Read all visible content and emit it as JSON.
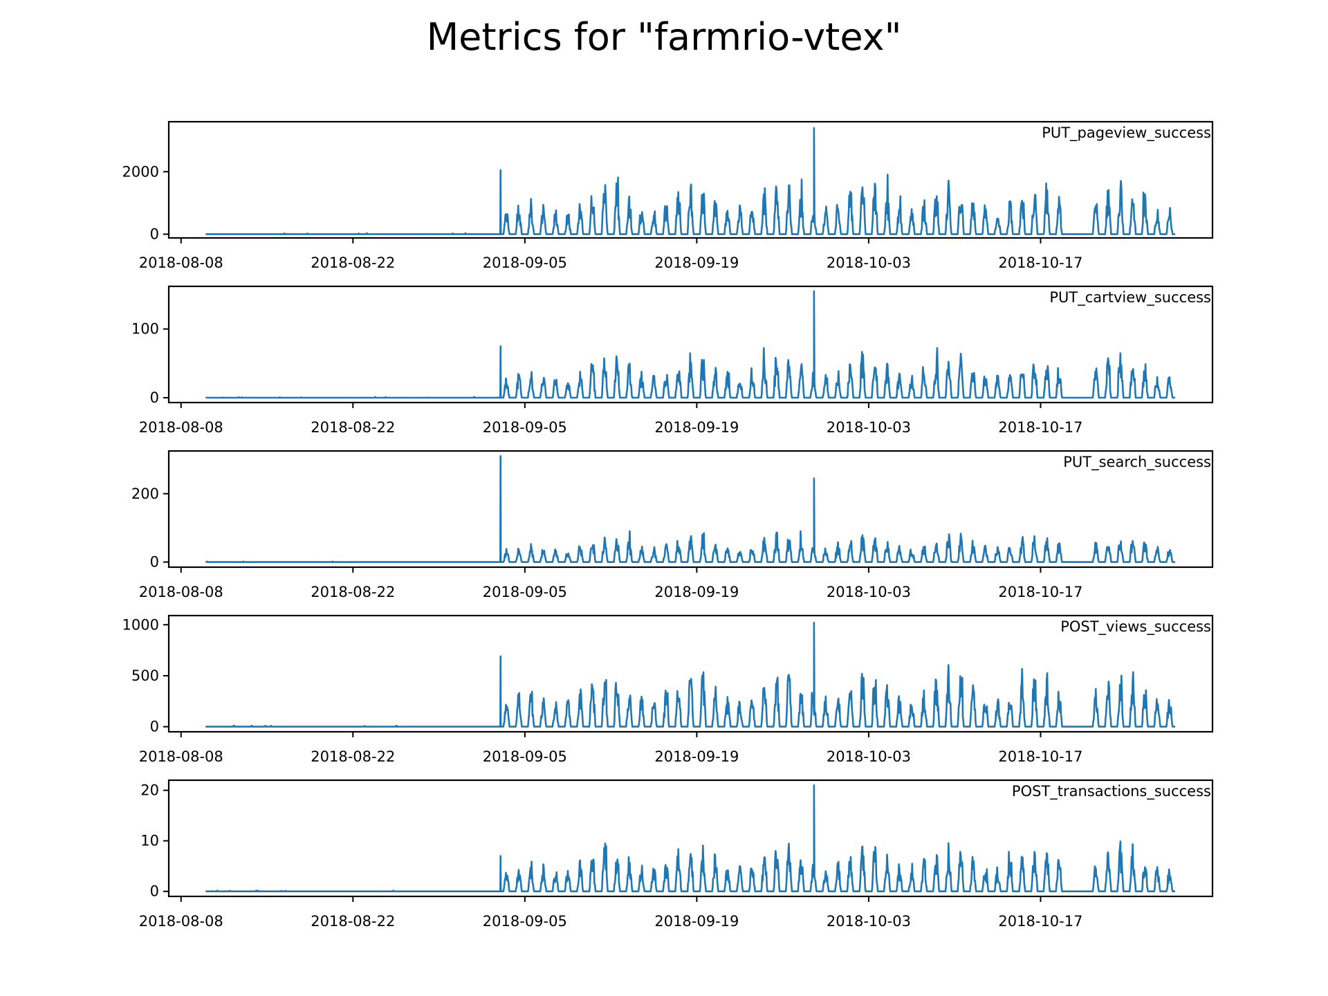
{
  "title": "Metrics for \"farmrio-vtex\"",
  "colors": {
    "line": "#1f77b4",
    "axes": "#000000",
    "background": "#ffffff"
  },
  "chart_data": [
    {
      "type": "line",
      "series": [
        {
          "name": "PUT_pageview_success",
          "peak": 3400,
          "level": 900,
          "spike": 2050,
          "seed": 11
        }
      ],
      "x_ticks": [
        "2018-08-08",
        "2018-08-22",
        "2018-09-05",
        "2018-09-19",
        "2018-10-03",
        "2018-10-17"
      ],
      "x_range": [
        "2018-08-07",
        "2018-10-31"
      ],
      "x_data_range": [
        "2018-08-10",
        "2018-10-28"
      ],
      "y_ticks": [
        0,
        2000
      ],
      "ylim": [
        -120,
        3600
      ],
      "grid": false
    },
    {
      "type": "line",
      "series": [
        {
          "name": "PUT_cartview_success",
          "peak": 155,
          "level": 35,
          "spike": 75,
          "seed": 23
        }
      ],
      "x_ticks": [
        "2018-08-08",
        "2018-08-22",
        "2018-09-05",
        "2018-09-19",
        "2018-10-03",
        "2018-10-17"
      ],
      "x_range": [
        "2018-08-07",
        "2018-10-31"
      ],
      "x_data_range": [
        "2018-08-10",
        "2018-10-28"
      ],
      "y_ticks": [
        0,
        100
      ],
      "ylim": [
        -7,
        162
      ],
      "grid": false
    },
    {
      "type": "line",
      "series": [
        {
          "name": "PUT_search_success",
          "peak": 245,
          "level": 45,
          "spike": 310,
          "seed": 37
        }
      ],
      "x_ticks": [
        "2018-08-08",
        "2018-08-22",
        "2018-09-05",
        "2018-09-19",
        "2018-10-03",
        "2018-10-17"
      ],
      "x_range": [
        "2018-08-07",
        "2018-10-31"
      ],
      "x_data_range": [
        "2018-08-10",
        "2018-10-28"
      ],
      "y_ticks": [
        0,
        200
      ],
      "ylim": [
        -15,
        325
      ],
      "grid": false
    },
    {
      "type": "line",
      "series": [
        {
          "name": "POST_views_success",
          "peak": 1020,
          "level": 300,
          "spike": 690,
          "seed": 41
        }
      ],
      "x_ticks": [
        "2018-08-08",
        "2018-08-22",
        "2018-09-05",
        "2018-09-19",
        "2018-10-03",
        "2018-10-17"
      ],
      "x_range": [
        "2018-08-07",
        "2018-10-31"
      ],
      "x_data_range": [
        "2018-08-10",
        "2018-10-28"
      ],
      "y_ticks": [
        0,
        500,
        1000
      ],
      "ylim": [
        -50,
        1090
      ],
      "grid": false
    },
    {
      "type": "line",
      "series": [
        {
          "name": "POST_transactions_success",
          "peak": 21,
          "level": 5,
          "spike": 7,
          "seed": 53
        }
      ],
      "x_ticks": [
        "2018-08-08",
        "2018-08-22",
        "2018-09-05",
        "2018-09-19",
        "2018-10-03",
        "2018-10-17"
      ],
      "x_range": [
        "2018-08-07",
        "2018-10-31"
      ],
      "x_data_range": [
        "2018-08-10",
        "2018-10-28"
      ],
      "y_ticks": [
        0,
        10,
        20
      ],
      "ylim": [
        -1,
        22
      ],
      "grid": false
    }
  ]
}
